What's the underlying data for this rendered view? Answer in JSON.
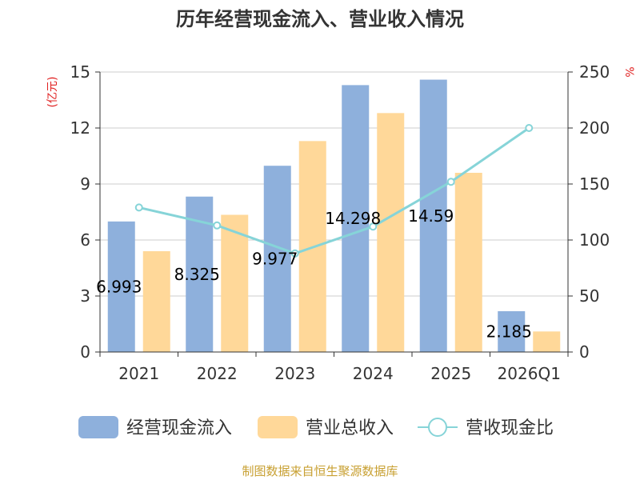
{
  "chart_data": {
    "type": "bar",
    "title": "历年经营现金流入、营业收入情况",
    "categories": [
      "2021",
      "2022",
      "2023",
      "2024",
      "2025",
      "2026Q1"
    ],
    "series": [
      {
        "name": "经营现金流入",
        "type": "bar",
        "axis": "left",
        "color": "#8eb0dc",
        "values": [
          6.993,
          8.325,
          9.977,
          14.298,
          14.59,
          2.185
        ],
        "labels": [
          "6.993",
          "8.325",
          "9.977",
          "14.298",
          "14.59",
          "2.185"
        ]
      },
      {
        "name": "营业总收入",
        "type": "bar",
        "axis": "left",
        "color": "#ffd899",
        "values": [
          5.4,
          7.35,
          11.3,
          12.8,
          9.6,
          1.1
        ]
      },
      {
        "name": "营收现金比",
        "type": "line",
        "axis": "right",
        "color": "#86d4d8",
        "values": [
          129,
          113,
          88,
          112,
          152,
          200
        ]
      }
    ],
    "y_left": {
      "label": "(亿元)",
      "min": 0,
      "max": 15,
      "ticks": [
        0,
        3,
        6,
        9,
        12,
        15
      ],
      "label_color": "#e02020"
    },
    "y_right": {
      "label": "%",
      "min": 0,
      "max": 250,
      "ticks": [
        0,
        50,
        100,
        150,
        200,
        250
      ],
      "label_color": "#e02020"
    },
    "grid": true,
    "legend_position": "bottom"
  },
  "source": {
    "text": "制图数据来自恒生聚源数据库",
    "color": "#c8a032"
  }
}
